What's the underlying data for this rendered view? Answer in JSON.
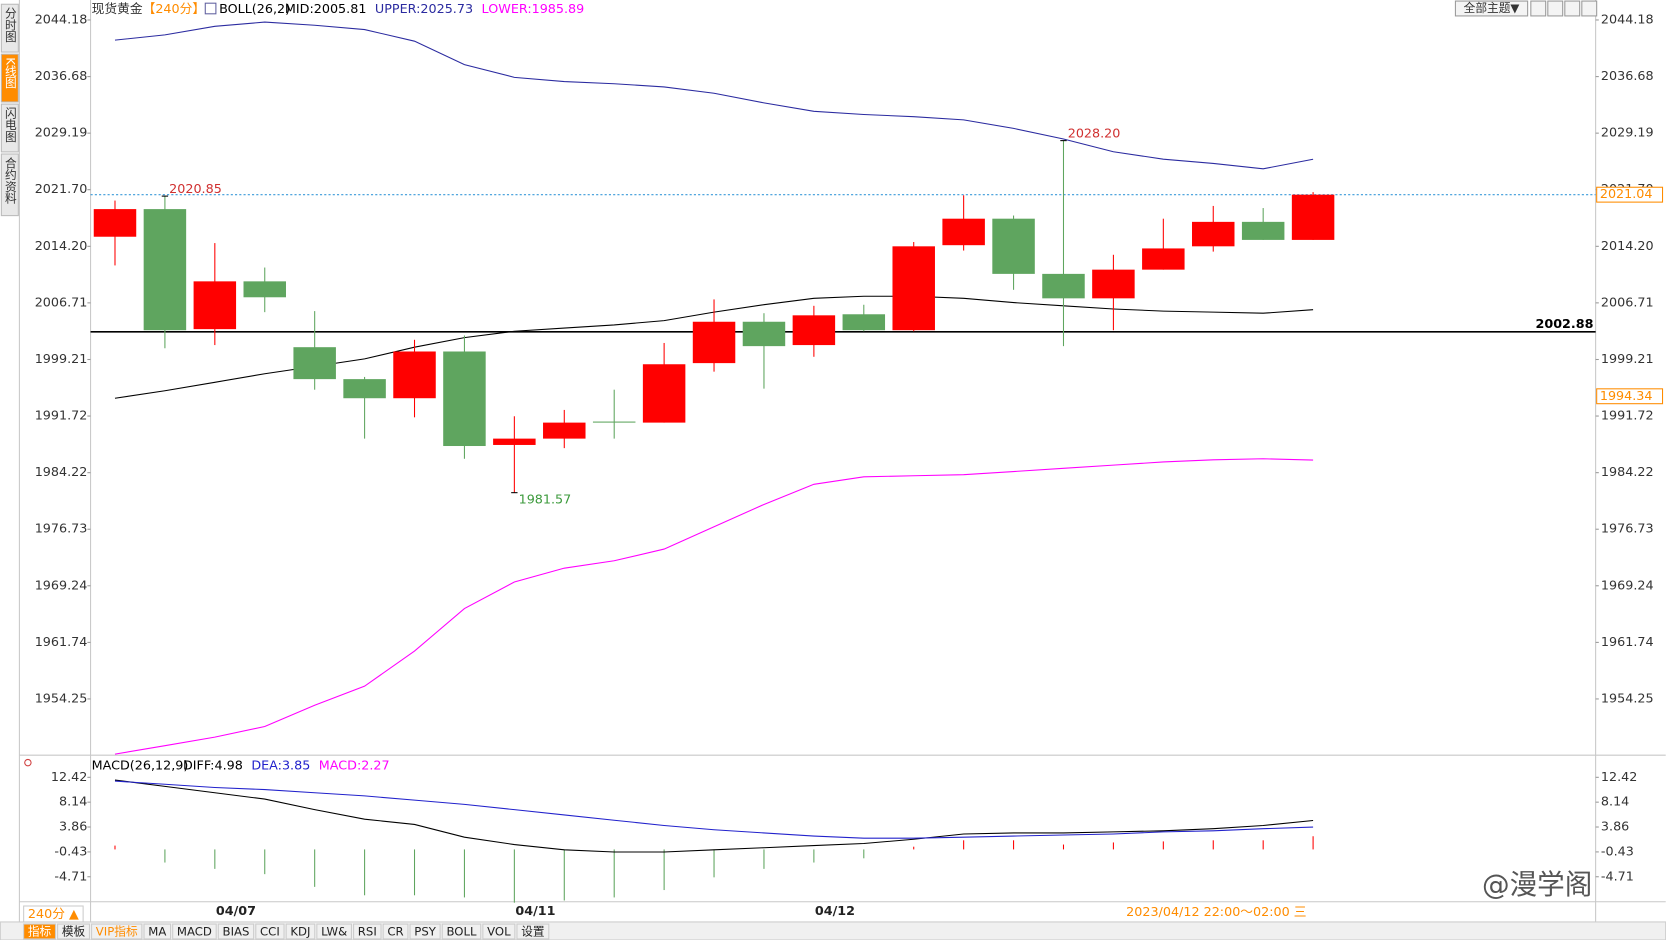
{
  "sidebar_tabs": [
    "分时图",
    "K线图",
    "闪电图",
    "合约资料"
  ],
  "theme_button": "全部主题▼",
  "watermark": "@漫学阁",
  "toolbar": {
    "period": "240分 ▲",
    "tabs": [
      "指标",
      "模板",
      "VIP指标",
      "MA",
      "MACD",
      "BIAS",
      "CCI",
      "KDJ",
      "LW&",
      "RSI",
      "CR",
      "PSY",
      "BOLL",
      "VOL",
      "设置"
    ]
  },
  "chart_data": [
    {
      "type": "candlestick",
      "title": "现货黄金",
      "subtitle": "【240分】",
      "indicator": "BOLL(26,2)",
      "categories": [
        null,
        null,
        "04/07",
        null,
        null,
        null,
        null,
        null,
        "04/11",
        null,
        null,
        null,
        null,
        null,
        "04/12",
        null,
        null,
        null,
        null,
        null,
        null,
        null,
        null,
        null,
        null
      ],
      "open": [
        2015.47,
        2019.13,
        2003.23,
        2009.56,
        2000.84,
        1996.61,
        1994.08,
        2000.27,
        1987.89,
        1988.73,
        1990.99,
        1990.85,
        1998.73,
        2004.21,
        2001.12,
        2005.2,
        2003.09,
        2014.35,
        2017.86,
        2010.55,
        2007.31,
        2011.11,
        2014.2,
        2017.44,
        2015.05
      ],
      "high": [
        2020.26,
        2020.85,
        2014.63,
        2011.39,
        2005.62,
        1996.9,
        2001.82,
        2002.39,
        1991.69,
        1992.53,
        1995.21,
        2001.4,
        2007.17,
        2005.34,
        2006.32,
        2006.46,
        2014.77,
        2020.96,
        2018.28,
        2028.2,
        2013.08,
        2017.86,
        2019.55,
        2019.27,
        2021.38
      ],
      "low": [
        2011.67,
        2000.7,
        2001.12,
        2005.48,
        1995.21,
        1988.73,
        1991.55,
        1986.06,
        1981.57,
        1987.47,
        1988.73,
        1990.85,
        1997.6,
        1995.35,
        1999.57,
        2002.95,
        2002.95,
        2013.64,
        2008.44,
        2000.98,
        2003.09,
        2011.11,
        2013.5,
        2015.05,
        2015.05
      ],
      "close": [
        2019.13,
        2003.09,
        2009.56,
        2007.45,
        1996.61,
        1994.08,
        2000.27,
        1987.75,
        1988.73,
        1990.85,
        1990.85,
        1998.58,
        2004.21,
        2000.98,
        2005.06,
        2003.09,
        2014.2,
        2017.86,
        2010.55,
        2007.31,
        2011.11,
        2013.92,
        2017.44,
        2015.05,
        2021.04
      ],
      "high_labels": [
        null,
        "2020.85",
        null,
        null,
        null,
        null,
        null,
        null,
        null,
        null,
        null,
        null,
        null,
        null,
        null,
        null,
        null,
        null,
        null,
        "2028.20",
        null,
        null,
        null,
        null,
        null
      ],
      "low_labels": [
        null,
        null,
        null,
        null,
        null,
        null,
        null,
        null,
        "1981.57",
        null,
        null,
        null,
        null,
        null,
        null,
        null,
        null,
        null,
        null,
        null,
        null,
        null,
        null,
        null,
        null
      ],
      "up_color": "#ff0000",
      "down_color": "#5fa55f",
      "series": [
        {
          "name": "MID:2005.81",
          "color": "#000000",
          "values": [
            1994.08,
            1995.07,
            1996.19,
            1997.32,
            1998.3,
            1999.29,
            2000.84,
            2002.11,
            2002.95,
            2003.37,
            2003.79,
            2004.36,
            2005.48,
            2006.47,
            2007.31,
            2007.59,
            2007.59,
            2007.31,
            2006.75,
            2006.32,
            2005.9,
            2005.62,
            2005.48,
            2005.34,
            2005.81
          ]
        },
        {
          "name": "UPPER:2025.73",
          "color": "#2b2ba0",
          "values": [
            2041.51,
            2042.21,
            2043.34,
            2043.9,
            2043.48,
            2042.91,
            2041.37,
            2038.27,
            2036.58,
            2036.02,
            2035.73,
            2035.31,
            2034.47,
            2033.2,
            2032.08,
            2031.66,
            2031.37,
            2030.95,
            2029.82,
            2028.41,
            2026.73,
            2025.74,
            2025.18,
            2024.47,
            2025.73
          ]
        },
        {
          "name": "LOWER:1985.89",
          "color": "#ff00ff",
          "values": [
            1946.94,
            1948.06,
            1949.19,
            1950.6,
            1953.41,
            1955.94,
            1960.59,
            1966.22,
            1969.74,
            1971.57,
            1972.55,
            1974.1,
            1977.06,
            1980.01,
            1982.68,
            1983.67,
            1983.81,
            1983.95,
            1984.37,
            1984.8,
            1985.22,
            1985.64,
            1985.92,
            1986.06,
            1985.89
          ]
        }
      ],
      "ylim": [
        1946.8,
        2045.7
      ],
      "yticks": [
        2044.18,
        2036.68,
        2029.19,
        {
          "value": 2021.7,
          "label": "2021.70"
        },
        {
          "value": 2014.2,
          "label": "2014.20"
        },
        2006.71,
        1999.21,
        1991.72,
        1984.22,
        1976.73,
        1969.24,
        1961.74,
        1954.25
      ],
      "hline": {
        "value": 2002.88,
        "color": "#000000"
      },
      "last_price": {
        "value": 2021.04,
        "color": "#ff8c00"
      },
      "cursor_price": 1994.34,
      "cursor_time": "2023/04/12 22:00～02:00 三"
    },
    {
      "type": "macd",
      "title": "MACD(26,12,9)",
      "up_color": "#ff0000",
      "down_color": "#5fa55f",
      "series": [
        {
          "name": "DIFF:4.98",
          "color": "#000000",
          "values": [
            11.95,
            10.86,
            9.76,
            8.67,
            6.85,
            5.21,
            4.3,
            2.11,
            0.84,
            -0.07,
            -0.44,
            -0.44,
            -0.07,
            0.29,
            0.66,
            1.02,
            1.75,
            2.66,
            2.84,
            2.84,
            3.02,
            3.21,
            3.57,
            4.12,
            4.98
          ]
        },
        {
          "name": "DEA:3.85",
          "color": "#2222cc",
          "values": [
            11.77,
            11.22,
            10.67,
            10.31,
            9.76,
            9.22,
            8.49,
            7.76,
            6.85,
            5.94,
            5.03,
            4.12,
            3.39,
            2.84,
            2.3,
            1.93,
            1.93,
            2.11,
            2.3,
            2.48,
            2.66,
            3.02,
            3.21,
            3.57,
            3.85
          ]
        },
        {
          "name": "MACD:2.27",
          "color": "#ff00ff",
          "values": [
            0.66,
            -2.26,
            -3.35,
            -4.26,
            -6.45,
            -7.9,
            -7.9,
            -8.27,
            -9.18,
            -8.8,
            -8.27,
            -7.0,
            -4.81,
            -3.35,
            -2.26,
            -1.53,
            0.47,
            1.57,
            1.57,
            0.84,
            1.2,
            1.38,
            1.57,
            1.57,
            2.27
          ]
        }
      ],
      "ylim": [
        -9.2,
        15.5
      ],
      "yticks": [
        12.42,
        8.14,
        3.86,
        -0.43,
        -4.71
      ]
    }
  ]
}
